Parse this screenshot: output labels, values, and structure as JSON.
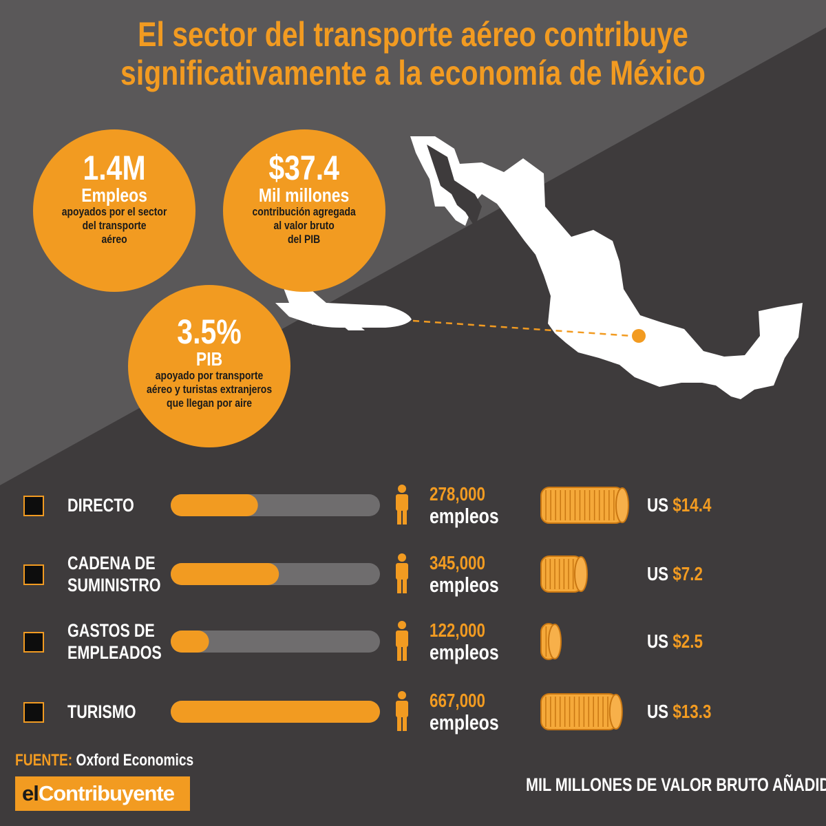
{
  "title_line1": "El sector del transporte aéreo contribuye",
  "title_line2": "significativamente a la economía de México",
  "bubbles": {
    "jobs": {
      "value": "1.4M",
      "label": "Empleos",
      "desc1": "apoyados por el sector",
      "desc2": "del transporte",
      "desc3": "aéreo"
    },
    "gva": {
      "value": "$37.4",
      "label": "Mil millones",
      "desc1": "contribución agregada",
      "desc2": "al valor bruto",
      "desc3": "del PIB"
    },
    "gdp": {
      "value": "3.5%",
      "label": "PIB",
      "desc1": "apoyado por transporte",
      "desc2": "aéreo y turistas extranjeros",
      "desc3": "que llegan por aire"
    }
  },
  "colors": {
    "accent": "#f29b21",
    "background": "#3e3b3c",
    "light_panel": "#5a5859",
    "bar_track": "#6f6d6e",
    "white": "#ffffff"
  },
  "icons": [
    "person-icon",
    "coin-stack-icon",
    "airplane-icon",
    "mexico-map",
    "checkbox-icon"
  ],
  "chart_data": {
    "type": "bar",
    "categories": [
      "DIRECTO",
      "CADENA DE SUMINISTRO",
      "GASTOS DE EMPLEADOS",
      "TURISMO"
    ],
    "category_lines": [
      [
        "DIRECTO"
      ],
      [
        "CADENA DE",
        "SUMINISTRO"
      ],
      [
        "GASTOS DE",
        "EMPLEADOS"
      ],
      [
        "TURISMO"
      ]
    ],
    "series": [
      {
        "values": [
          278000,
          345000,
          122000,
          667000
        ]
      },
      {
        "values": [
          14.4,
          7.2,
          2.5,
          13.3
        ]
      }
    ],
    "jobs_labels": [
      "278,000",
      "345,000",
      "122,000",
      "667,000"
    ],
    "jobs_unit": "empleos",
    "gva_currency": "US",
    "gva_labels": [
      "$14.4",
      "$7.2",
      "$2.5",
      "$13.3"
    ],
    "xlabel": "MIL MILLONES DE VALOR BRUTO AÑADIDO"
  },
  "source": {
    "label": "FUENTE:",
    "text": "Oxford Economics"
  },
  "logo": {
    "part1": "el",
    "part2": "Contribuyente"
  }
}
